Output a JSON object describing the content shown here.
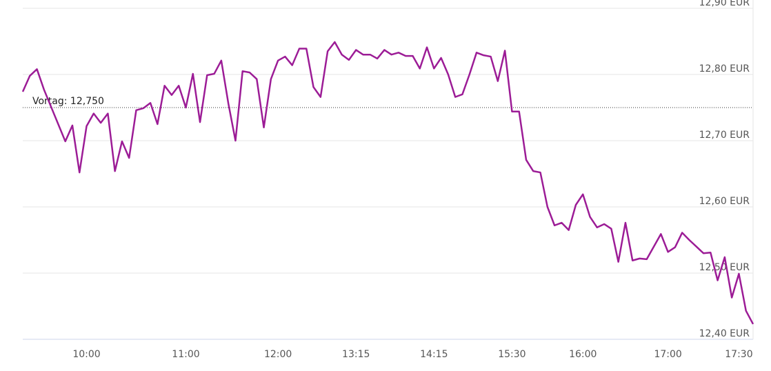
{
  "chart_data": {
    "type": "line",
    "categories": [
      null,
      null,
      null,
      null,
      null,
      null,
      null,
      null,
      null,
      "10:00",
      null,
      null,
      null,
      null,
      null,
      null,
      null,
      null,
      null,
      null,
      null,
      null,
      null,
      "11:00",
      null,
      null,
      null,
      null,
      null,
      null,
      null,
      null,
      null,
      null,
      null,
      null,
      "12:00",
      null,
      null,
      null,
      null,
      null,
      null,
      null,
      null,
      null,
      null,
      "13:15",
      null,
      null,
      null,
      null,
      null,
      null,
      null,
      null,
      null,
      null,
      "14:15",
      null,
      null,
      null,
      null,
      null,
      null,
      null,
      null,
      null,
      null,
      "15:30",
      null,
      null,
      null,
      null,
      null,
      null,
      null,
      null,
      null,
      "16:00",
      null,
      null,
      null,
      null,
      null,
      null,
      null,
      null,
      null,
      null,
      null,
      "17:00",
      null,
      null,
      null,
      null,
      null,
      null,
      null,
      null,
      null,
      "17:30",
      null,
      null
    ],
    "values": [
      12.774,
      12.798,
      12.808,
      12.777,
      12.751,
      12.725,
      12.699,
      12.723,
      12.652,
      12.722,
      12.741,
      12.727,
      12.741,
      12.654,
      12.699,
      12.674,
      12.746,
      12.749,
      12.757,
      12.725,
      12.783,
      12.769,
      12.783,
      12.75,
      12.801,
      12.728,
      12.799,
      12.801,
      12.821,
      12.756,
      12.7,
      12.805,
      12.803,
      12.793,
      12.72,
      12.793,
      12.821,
      12.827,
      12.814,
      12.839,
      12.839,
      12.781,
      12.766,
      12.835,
      12.849,
      12.83,
      12.822,
      12.837,
      12.83,
      12.83,
      12.824,
      12.837,
      12.83,
      12.833,
      12.828,
      12.828,
      12.809,
      12.841,
      12.809,
      12.825,
      12.8,
      12.766,
      12.77,
      12.8,
      12.833,
      12.829,
      12.827,
      12.79,
      12.836,
      12.744,
      12.744,
      12.671,
      12.654,
      12.652,
      12.6,
      12.572,
      12.576,
      12.565,
      12.603,
      12.619,
      12.585,
      12.569,
      12.574,
      12.567,
      12.517,
      12.576,
      12.519,
      12.522,
      12.521,
      12.54,
      12.559,
      12.532,
      12.539,
      12.561,
      12.55,
      12.54,
      12.53,
      12.531,
      12.489,
      12.524,
      12.463,
      12.499,
      12.443,
      12.423
    ],
    "color": "#9c1c96",
    "ylim": [
      12.4,
      12.9
    ],
    "yticks": [
      {
        "value": 12.4,
        "label": "12,40 EUR"
      },
      {
        "value": 12.5,
        "label": "12,50 EUR"
      },
      {
        "value": 12.6,
        "label": "12,60 EUR"
      },
      {
        "value": 12.7,
        "label": "12,70 EUR"
      },
      {
        "value": 12.8,
        "label": "12,80 EUR"
      },
      {
        "value": 12.9,
        "label": "12,90 EUR"
      }
    ],
    "grid": true,
    "reference_line": {
      "value": 12.75,
      "label": "Vortag: 12,750"
    }
  }
}
